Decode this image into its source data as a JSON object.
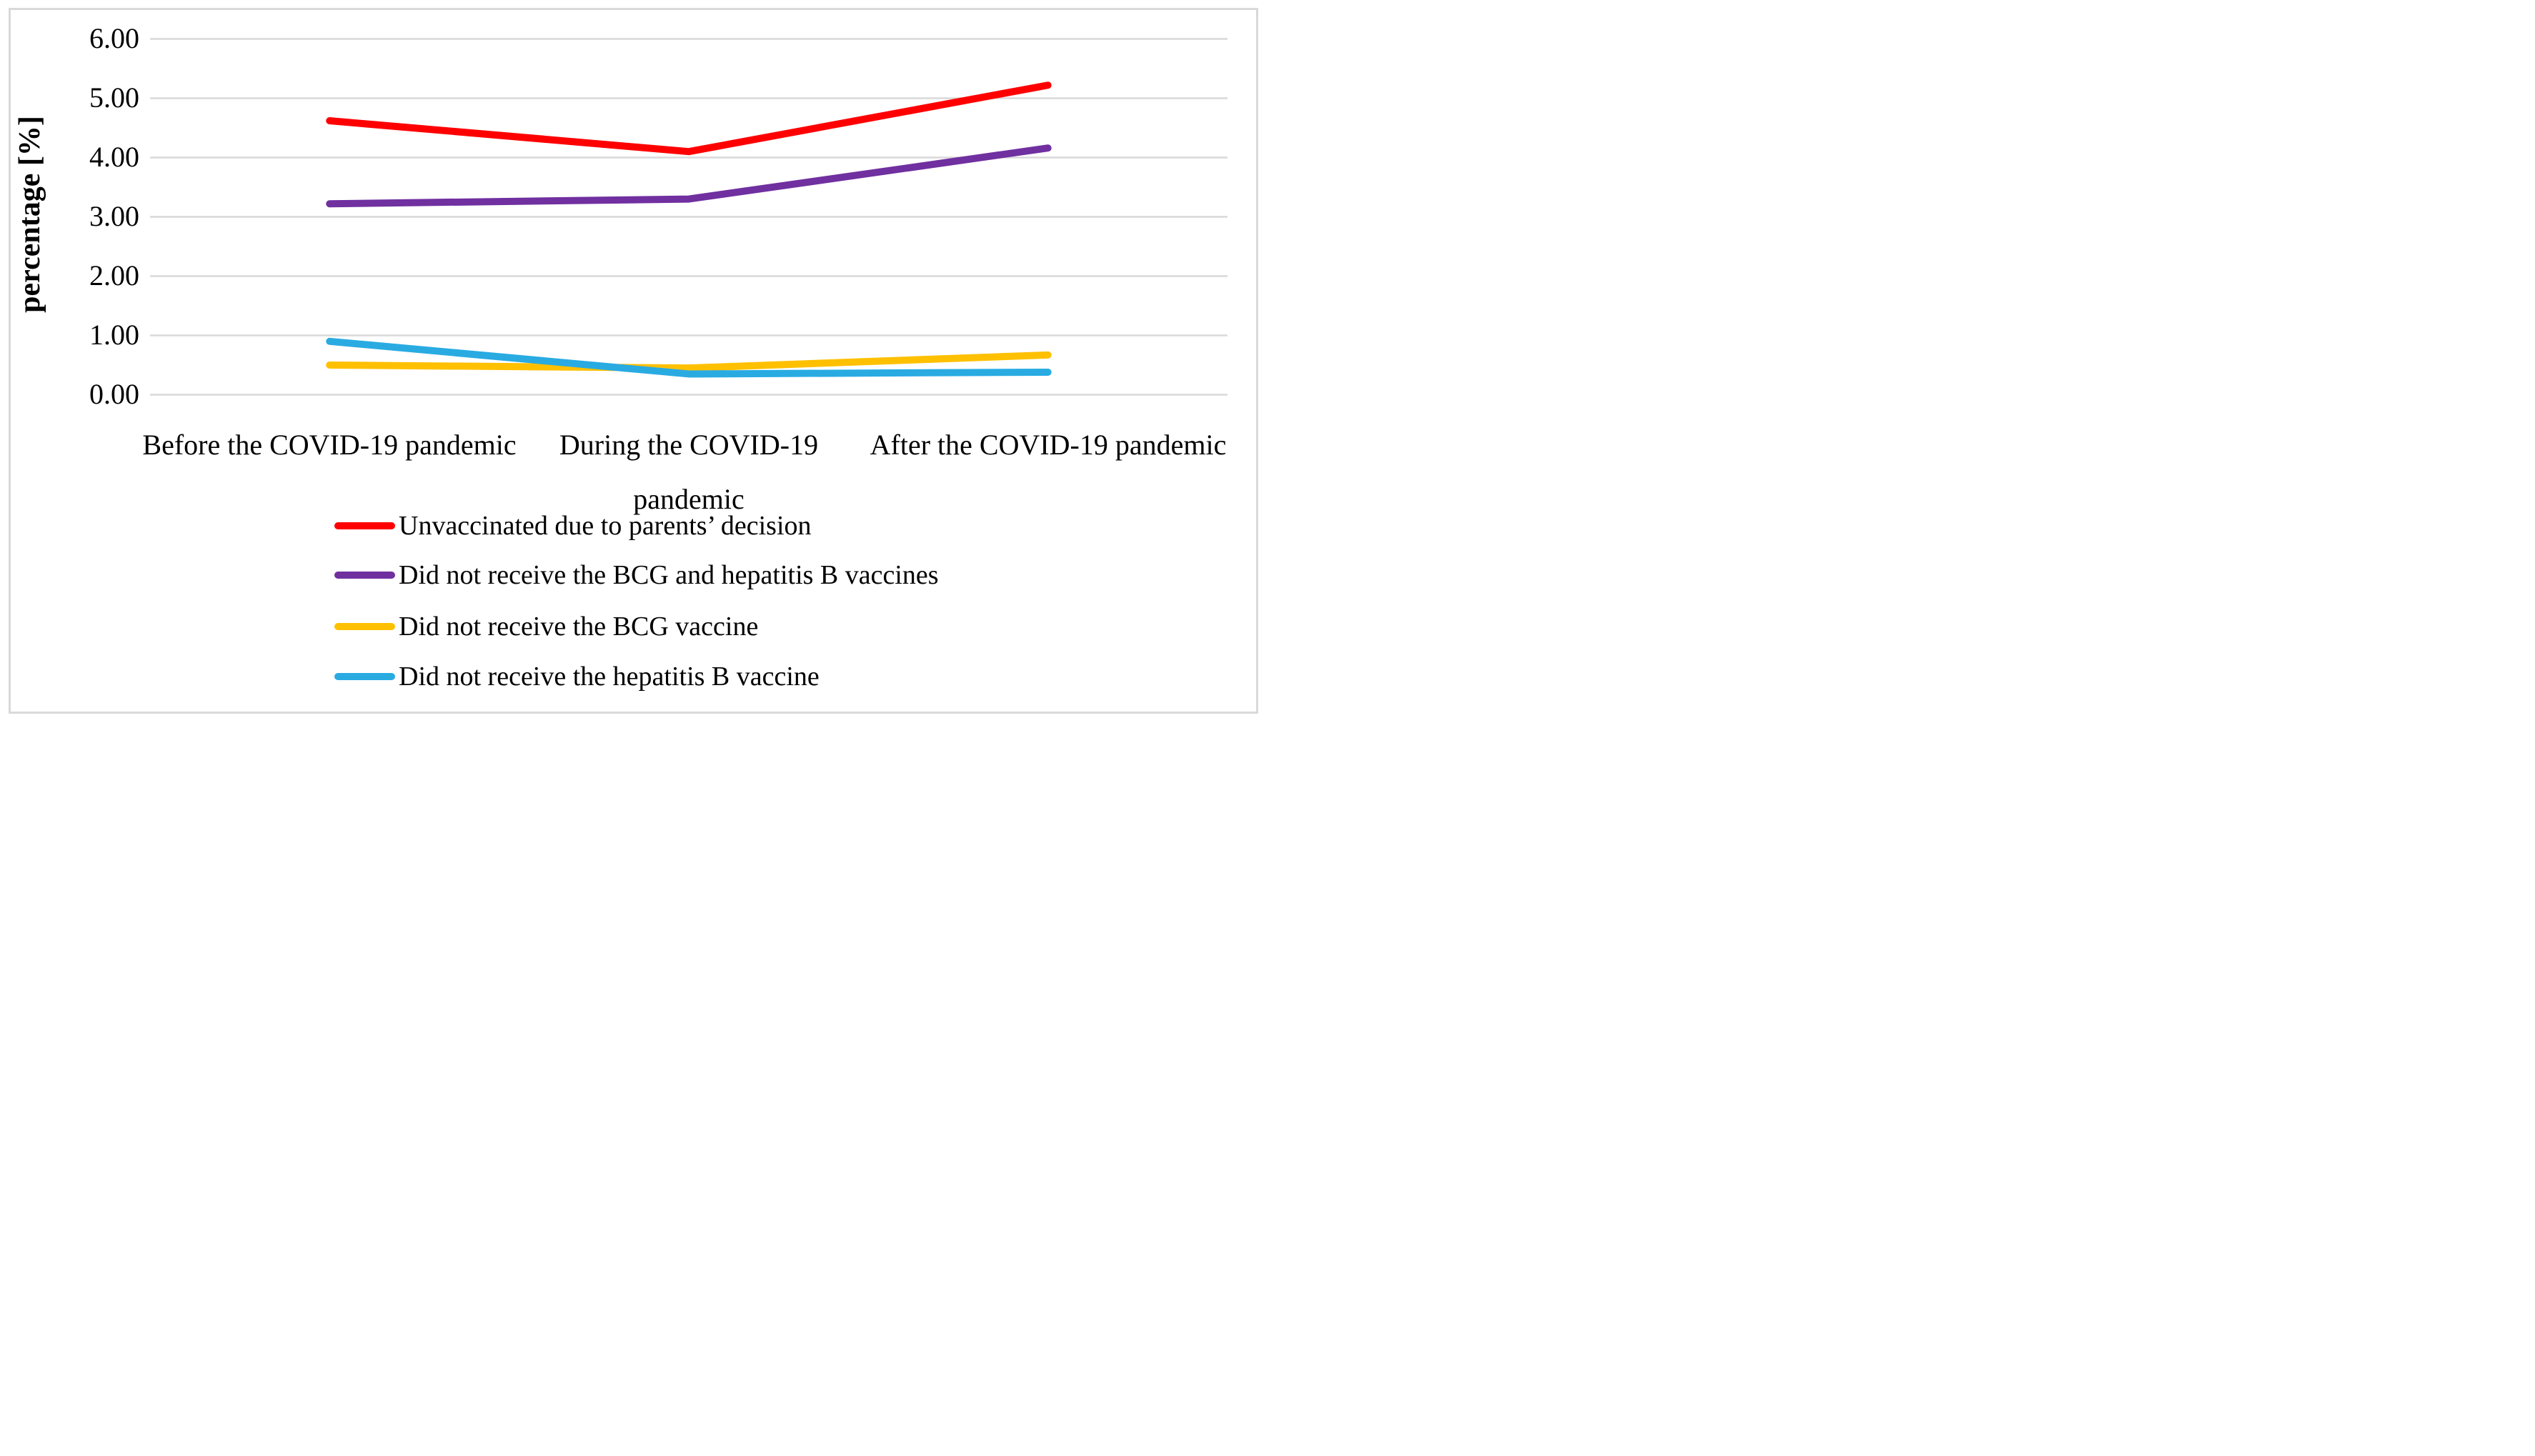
{
  "figure": {
    "background_color": "#ffffff",
    "frame_border_color": "#d9d9d9"
  },
  "chart_data": {
    "type": "line",
    "ylabel": "percentage [%]",
    "xlabel": "",
    "ylim": [
      0,
      6
    ],
    "ytick_step": 1,
    "ytick_labels": [
      "6.00",
      "5.00",
      "4.00",
      "3.00",
      "2.00",
      "1.00",
      "0.00"
    ],
    "categories": [
      "Before the COVID-19 pandemic",
      "During the COVID-19 pandemic",
      "After the COVID-19 pandemic"
    ],
    "grid": "horizontal",
    "gridline_color": "#d9d9d9",
    "legend_position": "bottom-left",
    "series": [
      {
        "name": "Unvaccinated due to parents’ decision",
        "color": "#ff0000",
        "values": [
          4.62,
          4.1,
          5.22
        ]
      },
      {
        "name": "Did not receive the BCG and hepatitis B vaccines",
        "color": "#7030a0",
        "values": [
          3.22,
          3.3,
          4.16
        ]
      },
      {
        "name": "Did not receive the BCG vaccine",
        "color": "#ffc000",
        "values": [
          0.5,
          0.45,
          0.67
        ]
      },
      {
        "name": "Did not receive the hepatitis B vaccine",
        "color": "#29abe2",
        "values": [
          0.9,
          0.35,
          0.38
        ]
      }
    ]
  }
}
